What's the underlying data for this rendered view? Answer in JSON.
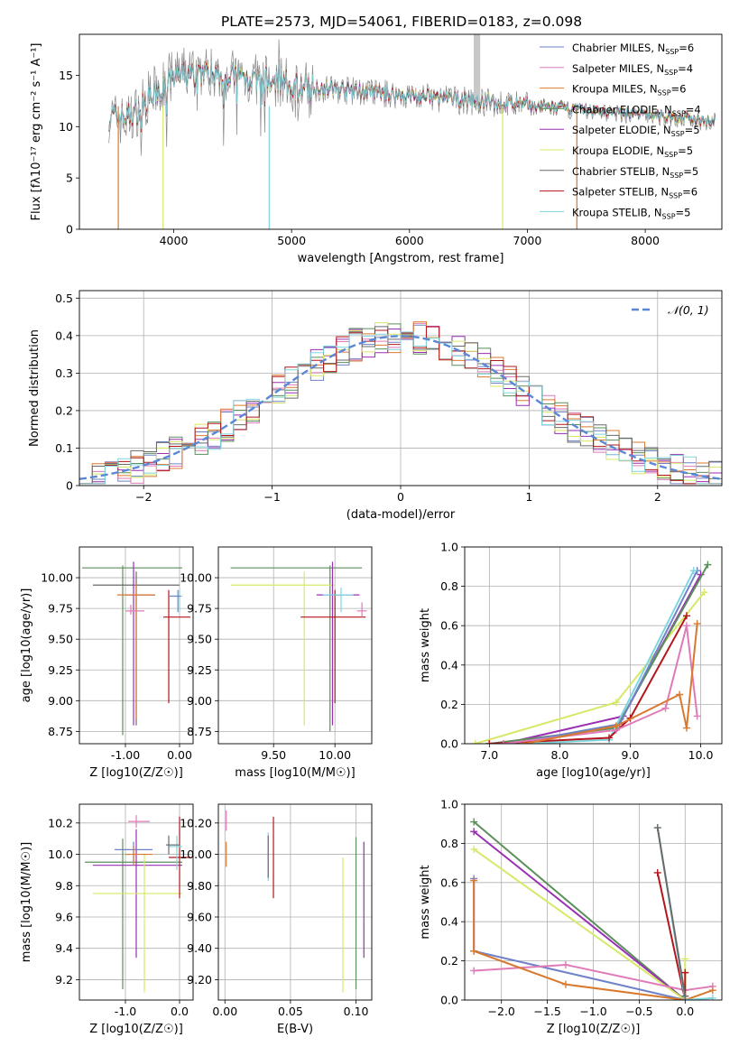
{
  "title": "PLATE=2573, MJD=54061, FIBERID=0183, z=0.098",
  "colors": [
    "#6f82c8",
    "#e07ab8",
    "#d9792e",
    "#5b8f5b",
    "#9a2fb3",
    "#d8e866",
    "#6a6a6a",
    "#b3161b",
    "#7fd5de"
  ],
  "legend_labels": [
    {
      "name": "Chabrier MILES, N",
      "sub": "SSP",
      "tail": "=6"
    },
    {
      "name": "Salpeter MILES, N",
      "sub": "SSP",
      "tail": "=4"
    },
    {
      "name": "Kroupa MILES, N",
      "sub": "SSP",
      "tail": "=6"
    },
    {
      "name": "Chabrier ELODIE, N",
      "sub": "SSP",
      "tail": "=4"
    },
    {
      "name": "Salpeter ELODIE, N",
      "sub": "SSP",
      "tail": "=5"
    },
    {
      "name": "Kroupa ELODIE, N",
      "sub": "SSP",
      "tail": "=5"
    },
    {
      "name": "Chabrier STELIB, N",
      "sub": "SSP",
      "tail": "=5"
    },
    {
      "name": "Salpeter STELIB, N",
      "sub": "SSP",
      "tail": "=6"
    },
    {
      "name": "Kroupa STELIB, N",
      "sub": "SSP",
      "tail": "=5"
    }
  ],
  "chart_data": [
    {
      "id": "spectrum",
      "type": "line",
      "xlabel": "wavelength [Angstrom, rest frame]",
      "ylabel": "Flux [fλ10⁻¹⁷ erg cm⁻² s⁻¹ A⁻¹]",
      "xlim": [
        3200,
        8650
      ],
      "ylim": [
        0,
        19
      ],
      "xticks": [
        4000,
        5000,
        6000,
        7000,
        8000
      ],
      "yticks": [
        0,
        5,
        10,
        15
      ],
      "grid": false,
      "legend": "top-right",
      "observed_spectrum_envelope": {
        "x": [
          3450,
          3600,
          3800,
          4000,
          4200,
          4500,
          5000,
          5500,
          6000,
          6500,
          7000,
          7500,
          8000,
          8500,
          8600
        ],
        "y": [
          11,
          10.5,
          13,
          15,
          15.5,
          15,
          14,
          13.5,
          13,
          12.5,
          12,
          11.5,
          11,
          10.5,
          10.5
        ]
      },
      "model_continuum": {
        "x": [
          3450,
          3700,
          4000,
          4300,
          4600,
          5000,
          5500,
          6000,
          6500,
          7000,
          7500,
          8000,
          8500,
          8600
        ],
        "y": [
          11,
          11.5,
          14.5,
          15.2,
          14.8,
          14.2,
          13.5,
          13.0,
          12.6,
          12.2,
          11.7,
          11.3,
          10.8,
          10.7
        ]
      }
    },
    {
      "id": "residuals",
      "type": "area",
      "xlabel": "(data-model)/error",
      "ylabel": "Normed distribution",
      "xlim": [
        -2.5,
        2.5
      ],
      "ylim": [
        0,
        0.52
      ],
      "xticks": [
        -2,
        -1,
        0,
        1,
        2
      ],
      "yticks": [
        0.0,
        0.1,
        0.2,
        0.3,
        0.4,
        0.5
      ],
      "grid": true,
      "legend": "top-right",
      "reference_label": "𝒩(0, 1)",
      "bin_width": 0.1,
      "bin_start": -2.5
    },
    {
      "id": "age-vs-Z",
      "type": "scatter",
      "xlabel": "Z [log10(Z/Z☉)]",
      "ylabel": "age  [log10(age/yr)]",
      "xlim": [
        -1.85,
        0.25
      ],
      "ylim": [
        8.65,
        10.25
      ],
      "xticks": [
        -1,
        0
      ],
      "yticks": [
        8.75,
        9.0,
        9.25,
        9.5,
        9.75,
        10.0
      ],
      "grid": true,
      "points": [
        {
          "s": 3,
          "x": -1.05,
          "y": 10.08,
          "xe": [
            -1.8,
            0.05
          ],
          "ye": [
            8.72,
            10.1
          ]
        },
        {
          "s": 6,
          "x": -0.8,
          "y": 9.94,
          "xe": [
            -1.6,
            0.0
          ],
          "ye": [
            8.8,
            10.05
          ]
        },
        {
          "s": 4,
          "x": -0.85,
          "y": 9.86,
          "xe": [
            -1.0,
            -0.45
          ],
          "ye": [
            8.8,
            10.13
          ]
        },
        {
          "s": 2,
          "x": -0.8,
          "y": 9.86,
          "xe": [
            -1.15,
            -0.45
          ],
          "ye": [
            8.85,
            9.95
          ]
        },
        {
          "s": 7,
          "x": -0.2,
          "y": 9.68,
          "xe": [
            -0.3,
            0.2
          ],
          "ye": [
            8.98,
            9.9
          ]
        },
        {
          "s": 8,
          "x": 0.0,
          "y": 9.85,
          "xe": [
            -0.2,
            0.05
          ],
          "ye": [
            9.72,
            9.9
          ]
        },
        {
          "s": 0,
          "x": -0.03,
          "y": 9.85,
          "xe": [
            -0.2,
            0.02
          ],
          "ye": [
            9.72,
            9.9
          ]
        },
        {
          "s": 1,
          "x": -0.9,
          "y": 9.73,
          "xe": [
            -1.0,
            -0.65
          ],
          "ye": [
            9.7,
            9.78
          ]
        }
      ]
    },
    {
      "id": "age-vs-mass",
      "type": "scatter",
      "xlabel": "mass [log10(M/M☉)]",
      "ylabel": "",
      "xlim": [
        9.05,
        10.3
      ],
      "ylim": [
        8.65,
        10.25
      ],
      "xticks": [
        9.5,
        10.0
      ],
      "yticks": [
        8.75,
        9.0,
        9.25,
        9.5,
        9.75,
        10.0
      ],
      "grid": true,
      "points": [
        {
          "s": 3,
          "x": 9.96,
          "y": 10.08,
          "xe": [
            9.15,
            10.22
          ],
          "ye": [
            8.75,
            10.1
          ]
        },
        {
          "s": 5,
          "x": 9.75,
          "y": 9.94,
          "xe": [
            9.15,
            10.0
          ],
          "ye": [
            8.8,
            10.05
          ]
        },
        {
          "s": 4,
          "x": 9.98,
          "y": 9.86,
          "xe": [
            9.85,
            10.2
          ],
          "ye": [
            8.8,
            10.13
          ]
        },
        {
          "s": 7,
          "x": 10.0,
          "y": 9.68,
          "xe": [
            9.72,
            10.25
          ],
          "ye": [
            8.98,
            9.9
          ]
        },
        {
          "s": 8,
          "x": 10.05,
          "y": 9.86,
          "xe": [
            9.9,
            10.15
          ],
          "ye": [
            9.72,
            9.92
          ]
        },
        {
          "s": 1,
          "x": 10.22,
          "y": 9.73,
          "xe": [
            10.18,
            10.26
          ],
          "ye": [
            9.68,
            9.8
          ]
        }
      ]
    },
    {
      "id": "weight-vs-age",
      "type": "line",
      "xlabel": "age  [log10(age/yr)]",
      "ylabel": "mass weight",
      "xlim": [
        6.65,
        10.3
      ],
      "ylim": [
        0,
        1.0
      ],
      "xticks": [
        7,
        8,
        9,
        10
      ],
      "yticks": [
        0.0,
        0.2,
        0.4,
        0.6,
        0.8,
        1.0
      ],
      "grid": true,
      "series": [
        {
          "s": 5,
          "x": [
            6.8,
            8.8,
            10.05
          ],
          "y": [
            0.0,
            0.21,
            0.77
          ]
        },
        {
          "s": 4,
          "x": [
            7.2,
            8.9,
            10.0
          ],
          "y": [
            0.0,
            0.14,
            0.86
          ]
        },
        {
          "s": 3,
          "x": [
            7.0,
            8.8,
            10.1
          ],
          "y": [
            0.0,
            0.08,
            0.91
          ]
        },
        {
          "s": 0,
          "x": [
            7.3,
            8.85,
            9.95
          ],
          "y": [
            0.0,
            0.1,
            0.88
          ]
        },
        {
          "s": 8,
          "x": [
            7.5,
            8.7,
            9.9
          ],
          "y": [
            0.0,
            0.02,
            0.88
          ]
        },
        {
          "s": 7,
          "x": [
            7.0,
            8.7,
            9.0,
            9.8
          ],
          "y": [
            0.0,
            0.03,
            0.13,
            0.65
          ]
        },
        {
          "s": 1,
          "x": [
            7.2,
            8.8,
            9.5,
            9.8,
            9.95
          ],
          "y": [
            0.0,
            0.07,
            0.18,
            0.6,
            0.14
          ]
        },
        {
          "s": 2,
          "x": [
            7.5,
            8.8,
            9.7,
            9.8,
            9.95
          ],
          "y": [
            0.0,
            0.09,
            0.25,
            0.08,
            0.61
          ]
        }
      ]
    },
    {
      "id": "mass-vs-Z",
      "type": "scatter",
      "xlabel": "Z [log10(Z/Z☉)]",
      "ylabel": "mass [log10(M/M☉)]",
      "xlim": [
        -1.85,
        0.25
      ],
      "ylim": [
        9.07,
        10.32
      ],
      "xticks": [
        -1,
        0
      ],
      "yticks": [
        9.2,
        9.4,
        9.6,
        9.8,
        10.0,
        10.2
      ],
      "grid": true,
      "points": [
        {
          "s": 3,
          "x": -1.05,
          "y": 9.95,
          "xe": [
            -1.75,
            0.05
          ],
          "ye": [
            9.14,
            10.1
          ]
        },
        {
          "s": 4,
          "x": -0.8,
          "y": 9.93,
          "xe": [
            -1.6,
            0.05
          ],
          "ye": [
            9.34,
            10.16
          ]
        },
        {
          "s": 5,
          "x": -0.65,
          "y": 9.75,
          "xe": [
            -1.6,
            0.05
          ],
          "ye": [
            9.12,
            10.0
          ]
        },
        {
          "s": 0,
          "x": -0.85,
          "y": 10.03,
          "xe": [
            -1.2,
            -0.5
          ],
          "ye": [
            9.95,
            10.08
          ]
        },
        {
          "s": 2,
          "x": -0.85,
          "y": 10.0,
          "xe": [
            -1.0,
            -0.5
          ],
          "ye": [
            9.93,
            10.05
          ]
        },
        {
          "s": 1,
          "x": -0.8,
          "y": 10.21,
          "xe": [
            -0.95,
            -0.55
          ],
          "ye": [
            10.17,
            10.25
          ]
        },
        {
          "s": 7,
          "x": 0.0,
          "y": 9.98,
          "xe": [
            -0.2,
            0.2
          ],
          "ye": [
            9.72,
            10.24
          ]
        },
        {
          "s": 8,
          "x": -0.05,
          "y": 10.05,
          "xe": [
            -0.2,
            0.05
          ],
          "ye": [
            9.9,
            10.12
          ]
        },
        {
          "s": 6,
          "x": -0.2,
          "y": 10.06,
          "xe": [
            -0.25,
            0.0
          ],
          "ye": [
            10.0,
            10.12
          ]
        }
      ]
    },
    {
      "id": "mass-vs-EBV",
      "type": "scatter",
      "xlabel": "E(B-V)",
      "ylabel": "",
      "xlim": [
        -0.005,
        0.112
      ],
      "ylim": [
        9.07,
        10.32
      ],
      "xticks": [
        0.0,
        0.05,
        0.1
      ],
      "yticks": [
        9.2,
        9.4,
        9.6,
        9.8,
        10.0,
        10.2
      ],
      "grid": true,
      "vbars": [
        {
          "s": 2,
          "x": 0.001,
          "ye": [
            9.92,
            10.08
          ]
        },
        {
          "s": 1,
          "x": 0.001,
          "ye": [
            10.15,
            10.28
          ]
        },
        {
          "s": 8,
          "x": 0.033,
          "ye": [
            9.83,
            10.14
          ]
        },
        {
          "s": 6,
          "x": 0.033,
          "ye": [
            9.85,
            10.12
          ]
        },
        {
          "s": 7,
          "x": 0.037,
          "ye": [
            9.72,
            10.24
          ]
        },
        {
          "s": 5,
          "x": 0.09,
          "ye": [
            9.12,
            9.98
          ]
        },
        {
          "s": 3,
          "x": 0.1,
          "ye": [
            9.14,
            10.11
          ]
        },
        {
          "s": 4,
          "x": 0.106,
          "ye": [
            9.34,
            10.08
          ]
        }
      ]
    },
    {
      "id": "weight-vs-Z",
      "type": "line",
      "xlabel": "Z [log10(Z/Z☉)]",
      "ylabel": "mass weight",
      "xlim": [
        -2.4,
        0.4
      ],
      "ylim": [
        0,
        1.0
      ],
      "xticks": [
        -2.0,
        -1.5,
        -1.0,
        -0.5,
        0.0
      ],
      "yticks": [
        0.0,
        0.2,
        0.4,
        0.6,
        0.8,
        1.0
      ],
      "grid": true,
      "series": [
        {
          "s": 3,
          "x": [
            -2.3,
            0.0
          ],
          "y": [
            0.91,
            0.0
          ]
        },
        {
          "s": 4,
          "x": [
            -2.3,
            0.0
          ],
          "y": [
            0.86,
            0.0
          ]
        },
        {
          "s": 5,
          "x": [
            -2.3,
            0.0,
            0.0
          ],
          "y": [
            0.77,
            0.0,
            0.21
          ]
        },
        {
          "s": 0,
          "x": [
            -2.3,
            -2.3,
            0.0
          ],
          "y": [
            0.62,
            0.25,
            0.0
          ]
        },
        {
          "s": 1,
          "x": [
            -2.3,
            -1.3,
            0.0,
            0.3
          ],
          "y": [
            0.15,
            0.18,
            0.05,
            0.07
          ]
        },
        {
          "s": 2,
          "x": [
            -2.3,
            -2.3,
            -1.3,
            0.0,
            0.3
          ],
          "y": [
            0.61,
            0.25,
            0.08,
            0.0,
            0.05
          ]
        },
        {
          "s": 7,
          "x": [
            -0.3,
            0.0,
            0.0
          ],
          "y": [
            0.65,
            0.0,
            0.14
          ]
        },
        {
          "s": 8,
          "x": [
            -0.3,
            0.0,
            0.3
          ],
          "y": [
            0.88,
            0.0,
            0.01
          ]
        },
        {
          "s": 6,
          "x": [
            -0.3,
            0.0
          ],
          "y": [
            0.88,
            0.02
          ]
        }
      ]
    }
  ]
}
